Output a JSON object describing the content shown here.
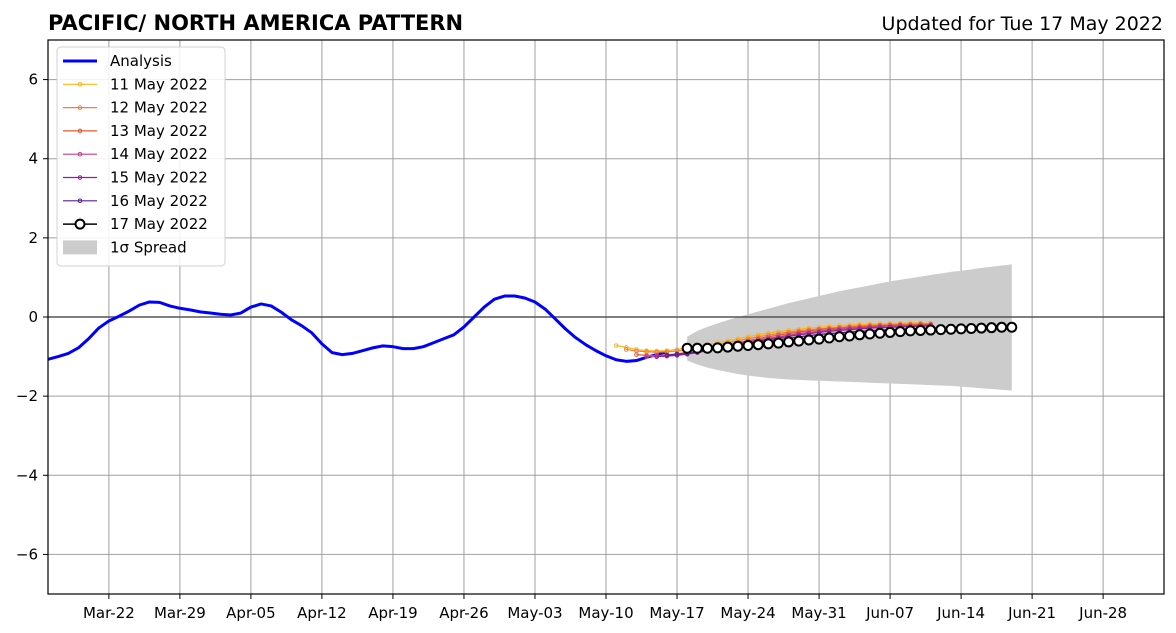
{
  "chart_data": {
    "type": "line",
    "title": "PACIFIC/ NORTH AMERICA PATTERN",
    "subtitle": "Updated for Tue 17 May 2022",
    "xlabel": "",
    "ylabel": "",
    "ylim": [
      -7,
      7
    ],
    "xlim": [
      "2022-03-16",
      "2022-07-04"
    ],
    "x_ticks": [
      "Mar-22",
      "Mar-29",
      "Apr-05",
      "Apr-12",
      "Apr-19",
      "Apr-26",
      "May-03",
      "May-10",
      "May-17",
      "May-24",
      "May-31",
      "Jun-07",
      "Jun-14",
      "Jun-21",
      "Jun-28"
    ],
    "y_ticks": [
      -6,
      -4,
      -2,
      0,
      2,
      4,
      6
    ],
    "grid": true,
    "legend_position": "top-left",
    "colors": {
      "analysis": "#0000ff",
      "11 May 2022": "#fbb61a",
      "12 May 2022": "#f1813f",
      "13 May 2022": "#e35833",
      "14 May 2022": "#c43c8e",
      "15 May 2022": "#931f97",
      "16 May 2022": "#5b1f8e",
      "17 May 2022": "#000000",
      "spread": "#cccccc",
      "grid": "#a0a0a0"
    },
    "analysis": {
      "name": "Analysis",
      "start_date": "2022-03-16",
      "values": [
        -1.07,
        -1.0,
        -0.92,
        -0.78,
        -0.55,
        -0.28,
        -0.1,
        0.02,
        0.15,
        0.3,
        0.38,
        0.37,
        0.28,
        0.22,
        0.18,
        0.13,
        0.1,
        0.07,
        0.05,
        0.1,
        0.25,
        0.33,
        0.28,
        0.12,
        -0.07,
        -0.22,
        -0.4,
        -0.68,
        -0.9,
        -0.95,
        -0.92,
        -0.85,
        -0.78,
        -0.73,
        -0.75,
        -0.8,
        -0.8,
        -0.75,
        -0.65,
        -0.55,
        -0.45,
        -0.25,
        0.0,
        0.25,
        0.45,
        0.53,
        0.53,
        0.48,
        0.38,
        0.2,
        -0.05,
        -0.3,
        -0.52,
        -0.7,
        -0.85,
        -0.98,
        -1.08,
        -1.12,
        -1.1,
        -1.02,
        -0.95,
        -0.88
      ]
    },
    "forecasts": [
      {
        "name": "11 May 2022",
        "start_date": "2022-05-11",
        "values": [
          -0.72,
          -0.77,
          -0.82,
          -0.85,
          -0.86,
          -0.85,
          -0.82,
          -0.78,
          -0.74,
          -0.7,
          -0.65,
          -0.6,
          -0.55,
          -0.5,
          -0.45,
          -0.41,
          -0.37,
          -0.34,
          -0.31,
          -0.28,
          -0.26,
          -0.24,
          -0.22,
          -0.2,
          -0.19,
          -0.18,
          -0.17,
          -0.16,
          -0.16,
          -0.15,
          -0.15,
          -0.16
        ]
      },
      {
        "name": "12 May 2022",
        "start_date": "2022-05-12",
        "values": [
          -0.82,
          -0.86,
          -0.88,
          -0.89,
          -0.88,
          -0.86,
          -0.82,
          -0.78,
          -0.74,
          -0.7,
          -0.65,
          -0.6,
          -0.55,
          -0.5,
          -0.46,
          -0.42,
          -0.38,
          -0.35,
          -0.32,
          -0.3,
          -0.28,
          -0.26,
          -0.24,
          -0.22,
          -0.21,
          -0.2,
          -0.19,
          -0.18,
          -0.18,
          -0.17,
          -0.17
        ]
      },
      {
        "name": "13 May 2022",
        "start_date": "2022-05-13",
        "values": [
          -0.95,
          -0.97,
          -0.98,
          -0.96,
          -0.93,
          -0.89,
          -0.85,
          -0.8,
          -0.75,
          -0.7,
          -0.65,
          -0.6,
          -0.55,
          -0.5,
          -0.46,
          -0.42,
          -0.38,
          -0.35,
          -0.32,
          -0.3,
          -0.28,
          -0.26,
          -0.25,
          -0.23,
          -0.22,
          -0.21,
          -0.2,
          -0.2,
          -0.19,
          -0.19
        ]
      },
      {
        "name": "14 May 2022",
        "start_date": "2022-05-14",
        "values": [
          -1.0,
          -1.0,
          -0.98,
          -0.95,
          -0.91,
          -0.87,
          -0.82,
          -0.77,
          -0.72,
          -0.67,
          -0.62,
          -0.58,
          -0.54,
          -0.5,
          -0.46,
          -0.42,
          -0.39,
          -0.36,
          -0.33,
          -0.31,
          -0.29,
          -0.27,
          -0.26,
          -0.24,
          -0.23,
          -0.22,
          -0.22,
          -0.21,
          -0.2
        ]
      },
      {
        "name": "15 May 2022",
        "start_date": "2022-05-15",
        "values": [
          -1.0,
          -0.99,
          -0.97,
          -0.94,
          -0.9,
          -0.85,
          -0.8,
          -0.75,
          -0.7,
          -0.65,
          -0.61,
          -0.57,
          -0.53,
          -0.49,
          -0.45,
          -0.42,
          -0.39,
          -0.36,
          -0.34,
          -0.32,
          -0.3,
          -0.28,
          -0.27,
          -0.26,
          -0.25,
          -0.24,
          -0.23,
          -0.22
        ]
      },
      {
        "name": "16 May 2022",
        "start_date": "2022-05-16",
        "values": [
          -0.96,
          -0.94,
          -0.92,
          -0.88,
          -0.84,
          -0.8,
          -0.76,
          -0.72,
          -0.68,
          -0.64,
          -0.6,
          -0.57,
          -0.54,
          -0.5,
          -0.47,
          -0.44,
          -0.42,
          -0.4,
          -0.38,
          -0.36,
          -0.35,
          -0.33,
          -0.32,
          -0.31,
          -0.3,
          -0.29,
          -0.29
        ]
      },
      {
        "name": "17 May 2022",
        "start_date": "2022-05-18",
        "values": [
          -0.79,
          -0.79,
          -0.79,
          -0.78,
          -0.76,
          -0.74,
          -0.72,
          -0.7,
          -0.68,
          -0.66,
          -0.63,
          -0.61,
          -0.58,
          -0.56,
          -0.53,
          -0.5,
          -0.48,
          -0.45,
          -0.43,
          -0.41,
          -0.39,
          -0.37,
          -0.35,
          -0.34,
          -0.33,
          -0.32,
          -0.31,
          -0.3,
          -0.29,
          -0.28,
          -0.27,
          -0.26,
          -0.26
        ]
      }
    ],
    "spread": {
      "name": "1σ Spread",
      "start_date": "2022-05-18",
      "end_date": "2022-06-19",
      "upper": [
        -0.5,
        -0.35,
        -0.25,
        -0.16,
        -0.08,
        0.0,
        0.07,
        0.14,
        0.21,
        0.28,
        0.35,
        0.41,
        0.47,
        0.53,
        0.59,
        0.65,
        0.7,
        0.75,
        0.8,
        0.85,
        0.9,
        0.94,
        0.98,
        1.02,
        1.06,
        1.1,
        1.14,
        1.17,
        1.2,
        1.24,
        1.27,
        1.3,
        1.33
      ],
      "lower": [
        -1.1,
        -1.2,
        -1.28,
        -1.34,
        -1.39,
        -1.44,
        -1.48,
        -1.51,
        -1.54,
        -1.56,
        -1.58,
        -1.59,
        -1.6,
        -1.61,
        -1.62,
        -1.63,
        -1.64,
        -1.65,
        -1.66,
        -1.67,
        -1.68,
        -1.69,
        -1.7,
        -1.71,
        -1.72,
        -1.73,
        -1.74,
        -1.76,
        -1.78,
        -1.8,
        -1.82,
        -1.84,
        -1.86
      ]
    }
  }
}
